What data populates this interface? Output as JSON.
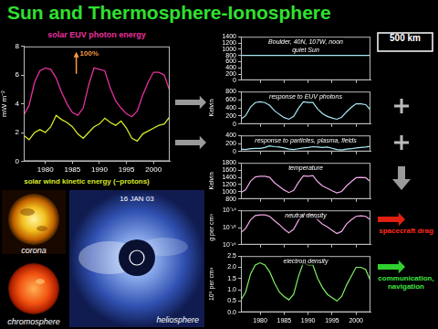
{
  "title": "Sun and Thermosphere-Ionosphere",
  "images": [
    {
      "label": "corona"
    },
    {
      "label": "chromosphere"
    },
    {
      "label": "heliosphere",
      "date": "16 JAN 03"
    }
  ],
  "chart_data": [
    {
      "type": "line",
      "ylabel": "mW m⁻²",
      "annotations": [
        "100%"
      ],
      "x": [
        1976,
        1977,
        1978,
        1979,
        1980,
        1981,
        1982,
        1983,
        1984,
        1985,
        1986,
        1987,
        1988,
        1989,
        1990,
        1991,
        1992,
        1993,
        1994,
        1995,
        1996,
        1997,
        1998,
        1999,
        2000,
        2001,
        2002,
        2003
      ],
      "xlim": [
        1976,
        2003
      ],
      "xticks": [
        1980,
        1985,
        1990,
        1995,
        2000
      ],
      "ylim": [
        0,
        8
      ],
      "yticks": [
        0,
        2,
        4,
        6,
        8
      ],
      "grid": false,
      "series": [
        {
          "name": "solar EUV photon energy",
          "color": "#e8309c",
          "values": [
            3.2,
            3.9,
            5.5,
            6.3,
            6.5,
            6.4,
            5.8,
            4.8,
            4.0,
            3.4,
            3.2,
            3.7,
            5.3,
            6.5,
            6.4,
            6.3,
            5.1,
            4.2,
            3.7,
            3.3,
            3.1,
            3.5,
            4.6,
            5.5,
            6.2,
            6.2,
            6.0,
            4.9
          ]
        },
        {
          "name": "solar wind kinetic energy (~protons)",
          "color": "#d8e828",
          "values": [
            1.8,
            1.5,
            2.0,
            2.2,
            2.0,
            2.4,
            3.2,
            2.9,
            2.7,
            2.4,
            1.9,
            1.6,
            2.0,
            2.4,
            2.6,
            3.0,
            2.7,
            2.5,
            2.8,
            2.3,
            1.6,
            1.4,
            1.9,
            2.1,
            2.3,
            2.5,
            2.6,
            3.1
          ]
        }
      ]
    },
    {
      "type": "line",
      "subtitle": "Boulder, 40N, 107W, noon",
      "title": "quiet Sun",
      "annotations": [
        "500 km"
      ],
      "x": [
        1976,
        1977,
        1978,
        1979,
        1980,
        1981,
        1982,
        1983,
        1984,
        1985,
        1986,
        1987,
        1988,
        1989,
        1990,
        1991,
        1992,
        1993,
        1994,
        1995,
        1996,
        1997,
        1998,
        1999,
        2000,
        2001,
        2002,
        2003
      ],
      "xlim": [
        1976,
        2003
      ],
      "xticks": [
        1980,
        1985,
        1990,
        1995,
        2000
      ],
      "ylim": [
        0,
        1400
      ],
      "yticks": [
        0,
        200,
        400,
        600,
        800,
        1000,
        1200,
        1400
      ],
      "grid": false,
      "tick_labels": "y",
      "color": "#a8e8f4",
      "values": [
        800,
        800,
        800,
        800,
        800,
        800,
        800,
        800,
        800,
        800,
        800,
        800,
        800,
        800,
        800,
        800,
        800,
        800,
        800,
        800,
        800,
        800,
        800,
        800,
        800,
        800,
        800,
        800
      ]
    },
    {
      "type": "line",
      "title": "response to EUV photons",
      "ylabel": "Kelvin",
      "x": [
        1976,
        1977,
        1978,
        1979,
        1980,
        1981,
        1982,
        1983,
        1984,
        1985,
        1986,
        1987,
        1988,
        1989,
        1990,
        1991,
        1992,
        1993,
        1994,
        1995,
        1996,
        1997,
        1998,
        1999,
        2000,
        2001,
        2002,
        2003
      ],
      "xlim": [
        1976,
        2003
      ],
      "xticks": [
        1980,
        1985,
        1990,
        1995,
        2000
      ],
      "ylim": [
        0,
        800
      ],
      "yticks": [
        0,
        200,
        400,
        600,
        800
      ],
      "grid": false,
      "tick_labels": "y",
      "color": "#a8e8f4",
      "values": [
        120,
        210,
        420,
        530,
        550,
        530,
        460,
        330,
        240,
        160,
        120,
        190,
        390,
        550,
        530,
        530,
        370,
        260,
        190,
        150,
        120,
        170,
        300,
        410,
        500,
        500,
        480,
        350
      ]
    },
    {
      "type": "line",
      "title": "response to particles, plasma, fields",
      "x": [
        1976,
        1977,
        1978,
        1979,
        1980,
        1981,
        1982,
        1983,
        1984,
        1985,
        1986,
        1987,
        1988,
        1989,
        1990,
        1991,
        1992,
        1993,
        1994,
        1995,
        1996,
        1997,
        1998,
        1999,
        2000,
        2001,
        2002,
        2003
      ],
      "xlim": [
        1976,
        2003
      ],
      "xticks": [
        1980,
        1985,
        1990,
        1995,
        2000
      ],
      "ylim": [
        0,
        400
      ],
      "yticks": [
        0,
        200,
        400
      ],
      "grid": false,
      "tick_labels": "y",
      "color": "#a8e8f4",
      "values": [
        60,
        50,
        70,
        80,
        80,
        100,
        140,
        120,
        110,
        90,
        60,
        50,
        70,
        90,
        100,
        120,
        110,
        100,
        110,
        80,
        50,
        40,
        60,
        70,
        90,
        100,
        110,
        130
      ]
    },
    {
      "type": "line",
      "title": "temperature",
      "ylabel": "Kelvin",
      "x": [
        1976,
        1977,
        1978,
        1979,
        1980,
        1981,
        1982,
        1983,
        1984,
        1985,
        1986,
        1987,
        1988,
        1989,
        1990,
        1991,
        1992,
        1993,
        1994,
        1995,
        1996,
        1997,
        1998,
        1999,
        2000,
        2001,
        2002,
        2003
      ],
      "xlim": [
        1976,
        2003
      ],
      "xticks": [
        1980,
        1985,
        1990,
        1995,
        2000
      ],
      "ylim": [
        800,
        1800
      ],
      "yticks": [
        800,
        1000,
        1200,
        1400,
        1600,
        1800
      ],
      "grid": false,
      "tick_labels": "y",
      "color": "#f0a8e8",
      "values": [
        980,
        1060,
        1290,
        1410,
        1430,
        1430,
        1400,
        1250,
        1150,
        1050,
        980,
        1040,
        1260,
        1440,
        1430,
        1450,
        1280,
        1160,
        1100,
        1030,
        970,
        1010,
        1160,
        1280,
        1390,
        1400,
        1390,
        1280
      ]
    },
    {
      "type": "line",
      "title": "neutral density",
      "ylabel": "g per cm³",
      "log": "y",
      "annotations": [
        "spacecraft drag"
      ],
      "x": [
        1976,
        1977,
        1978,
        1979,
        1980,
        1981,
        1982,
        1983,
        1984,
        1985,
        1986,
        1987,
        1988,
        1989,
        1990,
        1991,
        1992,
        1993,
        1994,
        1995,
        1996,
        1997,
        1998,
        1999,
        2000,
        2001,
        2002,
        2003
      ],
      "xlim": [
        1976,
        2003
      ],
      "xticks": [
        1980,
        1985,
        1990,
        1995,
        2000
      ],
      "ylim": [
        1e-16,
        1e-14
      ],
      "yticks": [
        {
          "value": 1e-16,
          "label": "10⁻¹⁶"
        },
        {
          "value": 1e-15,
          "label": "10⁻¹⁵"
        },
        {
          "value": 1e-14,
          "label": "10⁻¹⁴"
        }
      ],
      "grid": false,
      "tick_labels": "y",
      "color": "#f0a8e8",
      "values": [
        5e-16,
        9e-16,
        2.8e-15,
        5e-15,
        5.5e-15,
        5.5e-15,
        4.5e-15,
        2.5e-15,
        1.5e-15,
        8e-16,
        5e-16,
        8e-16,
        2.6e-15,
        5.8e-15,
        5.5e-15,
        6e-15,
        2.8e-15,
        1.6e-15,
        1.1e-15,
        7e-16,
        4.5e-16,
        6e-16,
        1.6e-15,
        2.8e-15,
        4.5e-15,
        4.8e-15,
        4.5e-15,
        2.8e-15
      ]
    },
    {
      "type": "line",
      "title": "electron density",
      "ylabel": "10⁵ per cm³",
      "annotations": [
        "communication, navigation"
      ],
      "x": [
        1976,
        1977,
        1978,
        1979,
        1980,
        1981,
        1982,
        1983,
        1984,
        1985,
        1986,
        1987,
        1988,
        1989,
        1990,
        1991,
        1992,
        1993,
        1994,
        1995,
        1996,
        1997,
        1998,
        1999,
        2000,
        2001,
        2002,
        2003
      ],
      "xlim": [
        1976,
        2003
      ],
      "xticks": [
        1980,
        1985,
        1990,
        1995,
        2000
      ],
      "ylim": [
        0,
        2.5
      ],
      "yticks": [
        {
          "value": 0,
          "label": "0.0"
        },
        0.5,
        {
          "value": 1,
          "label": "1.0"
        },
        1.5,
        {
          "value": 2,
          "label": "2.0"
        },
        2.5
      ],
      "grid": false,
      "color": "#80f060",
      "values": [
        0.55,
        0.9,
        1.7,
        2.1,
        2.2,
        2.1,
        1.8,
        1.3,
        0.9,
        0.7,
        0.55,
        0.8,
        1.6,
        2.2,
        2.1,
        2.1,
        1.5,
        1.1,
        0.8,
        0.65,
        0.5,
        0.7,
        1.2,
        1.6,
        2.0,
        2.0,
        1.9,
        1.4
      ]
    }
  ]
}
